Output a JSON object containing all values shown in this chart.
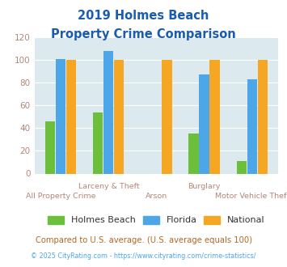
{
  "title_line1": "2019 Holmes Beach",
  "title_line2": "Property Crime Comparison",
  "categories": [
    "All Property Crime",
    "Larceny & Theft",
    "Arson",
    "Burglary",
    "Motor Vehicle Theft"
  ],
  "series": {
    "Holmes Beach": [
      46,
      54,
      0,
      35,
      11
    ],
    "Florida": [
      101,
      108,
      0,
      87,
      83
    ],
    "National": [
      100,
      100,
      100,
      100,
      100
    ]
  },
  "colors": {
    "Holmes Beach": "#6bbf3a",
    "Florida": "#4da6e8",
    "National": "#f5a623"
  },
  "ylim": [
    0,
    120
  ],
  "yticks": [
    0,
    20,
    40,
    60,
    80,
    100,
    120
  ],
  "background_color": "#dce9ee",
  "title_color": "#1a5cb0",
  "axis_label_color": "#b08878",
  "footer_text": "Compared to U.S. average. (U.S. average equals 100)",
  "credit_text": "© 2025 CityRating.com - https://www.cityrating.com/crime-statistics/",
  "footer_color": "#b06828",
  "credit_color": "#4da6e8",
  "bar_width": 0.22,
  "top_row_labels": {
    "1": "Larceny & Theft",
    "3": "Burglary"
  },
  "bottom_row_labels": {
    "0": "All Property Crime",
    "2": "Arson",
    "4": "Motor Vehicle Theft"
  }
}
